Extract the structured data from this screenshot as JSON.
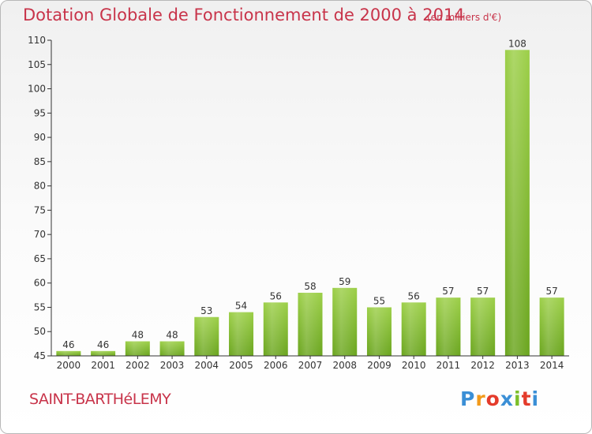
{
  "title": "Dotation Globale de Fonctionnement de 2000 à 2014",
  "unit_note": "(en milliers d'€)",
  "commune": "SAINT-BARTHéLEMY",
  "logo_text": "Proxiti",
  "colors": {
    "title": "#c8344a",
    "bar_light": "#9ccf48",
    "bar_dark": "#6aa51e",
    "axis": "#333333"
  },
  "chart_data": {
    "type": "bar",
    "title": "Dotation Globale de Fonctionnement de 2000 à 2014",
    "xlabel": "",
    "ylabel": "",
    "categories": [
      "2000",
      "2001",
      "2002",
      "2003",
      "2004",
      "2005",
      "2006",
      "2007",
      "2008",
      "2009",
      "2010",
      "2011",
      "2012",
      "2013",
      "2014"
    ],
    "values": [
      46,
      46,
      48,
      48,
      53,
      54,
      56,
      58,
      59,
      55,
      56,
      57,
      57,
      108,
      57
    ],
    "ylim": [
      45,
      110
    ],
    "yticks": [
      45,
      50,
      55,
      60,
      65,
      70,
      75,
      80,
      85,
      90,
      95,
      100,
      105,
      110
    ],
    "grid": false,
    "legend": "none"
  }
}
